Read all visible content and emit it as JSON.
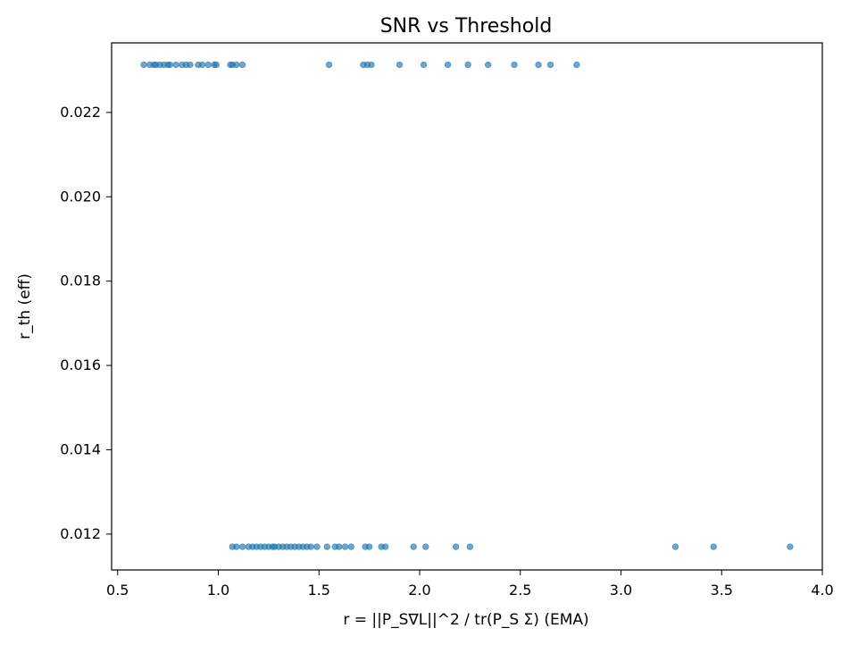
{
  "chart_data": {
    "type": "scatter",
    "title": "SNR vs Threshold",
    "xlabel": "r = ||P_S∇L||^2 / tr(P_S Σ) (EMA)",
    "ylabel": "r_th (eff)",
    "xlim": [
      0.47,
      4.0
    ],
    "ylim": [
      0.01115,
      0.02365
    ],
    "xticks": [
      0.5,
      1.0,
      1.5,
      2.0,
      2.5,
      3.0,
      3.5,
      4.0
    ],
    "xtick_labels": [
      "0.5",
      "1.0",
      "1.5",
      "2.0",
      "2.5",
      "3.0",
      "3.5",
      "4.0"
    ],
    "yticks": [
      0.012,
      0.014,
      0.016,
      0.018,
      0.02,
      0.022
    ],
    "ytick_labels": [
      "0.012",
      "0.014",
      "0.016",
      "0.018",
      "0.020",
      "0.022"
    ],
    "grid": false,
    "marker_color": "#1f77b4",
    "marker_alpha": 0.65,
    "series": [
      {
        "points": [
          [
            0.63,
            0.02313
          ],
          [
            0.66,
            0.02313
          ],
          [
            0.68,
            0.02313
          ],
          [
            0.69,
            0.02313
          ],
          [
            0.71,
            0.02313
          ],
          [
            0.73,
            0.02313
          ],
          [
            0.75,
            0.02313
          ],
          [
            0.76,
            0.02313
          ],
          [
            0.79,
            0.02313
          ],
          [
            0.82,
            0.02313
          ],
          [
            0.84,
            0.02313
          ],
          [
            0.86,
            0.02313
          ],
          [
            0.9,
            0.02313
          ],
          [
            0.92,
            0.02313
          ],
          [
            0.95,
            0.02313
          ],
          [
            0.98,
            0.02313
          ],
          [
            0.99,
            0.02313
          ],
          [
            1.06,
            0.02313
          ],
          [
            1.07,
            0.02313
          ],
          [
            1.09,
            0.02313
          ],
          [
            1.12,
            0.02313
          ],
          [
            1.55,
            0.02313
          ],
          [
            1.72,
            0.02313
          ],
          [
            1.74,
            0.02313
          ],
          [
            1.76,
            0.02313
          ],
          [
            1.9,
            0.02313
          ],
          [
            2.02,
            0.02313
          ],
          [
            2.14,
            0.02313
          ],
          [
            2.24,
            0.02313
          ],
          [
            2.34,
            0.02313
          ],
          [
            2.47,
            0.02313
          ],
          [
            2.59,
            0.02313
          ],
          [
            2.65,
            0.02313
          ],
          [
            2.78,
            0.02313
          ],
          [
            1.07,
            0.0117
          ],
          [
            1.09,
            0.0117
          ],
          [
            1.12,
            0.0117
          ],
          [
            1.15,
            0.0117
          ],
          [
            1.17,
            0.0117
          ],
          [
            1.19,
            0.0117
          ],
          [
            1.21,
            0.0117
          ],
          [
            1.23,
            0.0117
          ],
          [
            1.25,
            0.0117
          ],
          [
            1.27,
            0.0117
          ],
          [
            1.28,
            0.0117
          ],
          [
            1.3,
            0.0117
          ],
          [
            1.32,
            0.0117
          ],
          [
            1.34,
            0.0117
          ],
          [
            1.36,
            0.0117
          ],
          [
            1.38,
            0.0117
          ],
          [
            1.4,
            0.0117
          ],
          [
            1.42,
            0.0117
          ],
          [
            1.44,
            0.0117
          ],
          [
            1.46,
            0.0117
          ],
          [
            1.49,
            0.0117
          ],
          [
            1.54,
            0.0117
          ],
          [
            1.58,
            0.0117
          ],
          [
            1.6,
            0.0117
          ],
          [
            1.63,
            0.0117
          ],
          [
            1.66,
            0.0117
          ],
          [
            1.73,
            0.0117
          ],
          [
            1.75,
            0.0117
          ],
          [
            1.81,
            0.0117
          ],
          [
            1.83,
            0.0117
          ],
          [
            1.97,
            0.0117
          ],
          [
            2.03,
            0.0117
          ],
          [
            2.18,
            0.0117
          ],
          [
            2.25,
            0.0117
          ],
          [
            3.27,
            0.0117
          ],
          [
            3.46,
            0.0117
          ],
          [
            3.84,
            0.0117
          ]
        ]
      }
    ]
  }
}
